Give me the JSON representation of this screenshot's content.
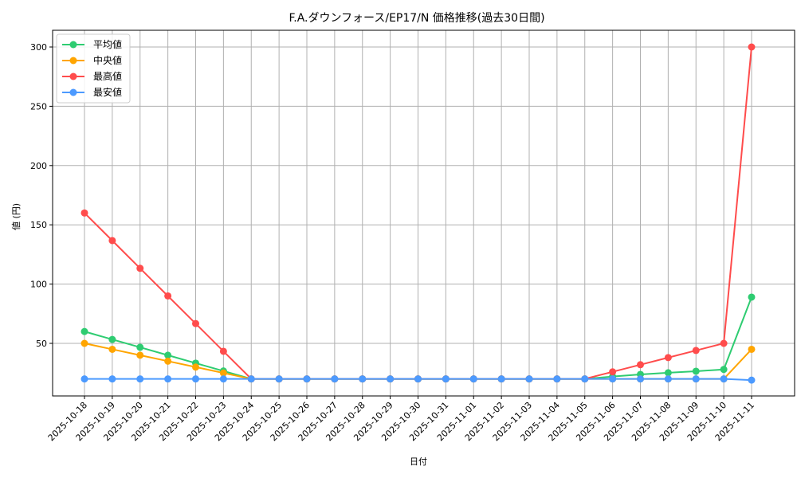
{
  "chart_data": {
    "type": "line",
    "title": "F.A.ダウンフォース/EP17/N 価格推移(過去30日間)",
    "xlabel": "日付",
    "ylabel": "値 (円)",
    "ylim": [
      5,
      313
    ],
    "yticks": [
      50,
      100,
      150,
      200,
      250,
      300
    ],
    "grid": true,
    "legend_position": "upper left",
    "x": [
      "2025-10-18",
      "2025-10-19",
      "2025-10-20",
      "2025-10-21",
      "2025-10-22",
      "2025-10-23",
      "2025-10-24",
      "2025-10-25",
      "2025-10-26",
      "2025-10-27",
      "2025-10-28",
      "2025-10-29",
      "2025-10-30",
      "2025-10-31",
      "2025-11-01",
      "2025-11-02",
      "2025-11-03",
      "2025-11-04",
      "2025-11-05",
      "2025-11-06",
      "2025-11-07",
      "2025-11-08",
      "2025-11-09",
      "2025-11-10",
      "2025-11-11"
    ],
    "series": [
      {
        "name": "平均値",
        "color": "#2ecc71",
        "values": [
          60,
          53.3,
          46.7,
          40,
          33.3,
          26.7,
          20,
          20,
          20,
          20,
          20,
          20,
          20,
          20,
          20,
          20,
          20,
          20,
          20,
          22,
          23.8,
          25.2,
          26.5,
          28,
          89
        ]
      },
      {
        "name": "中央値",
        "color": "#ffa500",
        "values": [
          50,
          45,
          40,
          35,
          30,
          25,
          20,
          20,
          20,
          20,
          20,
          20,
          20,
          20,
          20,
          20,
          20,
          20,
          20,
          20,
          20,
          20,
          20,
          20,
          45
        ]
      },
      {
        "name": "最高値",
        "color": "#ff4c4c",
        "values": [
          160,
          136.7,
          113.3,
          90,
          66.7,
          43.3,
          20,
          20,
          20,
          20,
          20,
          20,
          20,
          20,
          20,
          20,
          20,
          20,
          20,
          26,
          32,
          38,
          44,
          50,
          300
        ]
      },
      {
        "name": "最安値",
        "color": "#4c9aff",
        "values": [
          20,
          20,
          20,
          20,
          20,
          20,
          20,
          20,
          20,
          20,
          20,
          20,
          20,
          20,
          20,
          20,
          20,
          20,
          20,
          20,
          20,
          20,
          20,
          20,
          19
        ]
      }
    ]
  }
}
